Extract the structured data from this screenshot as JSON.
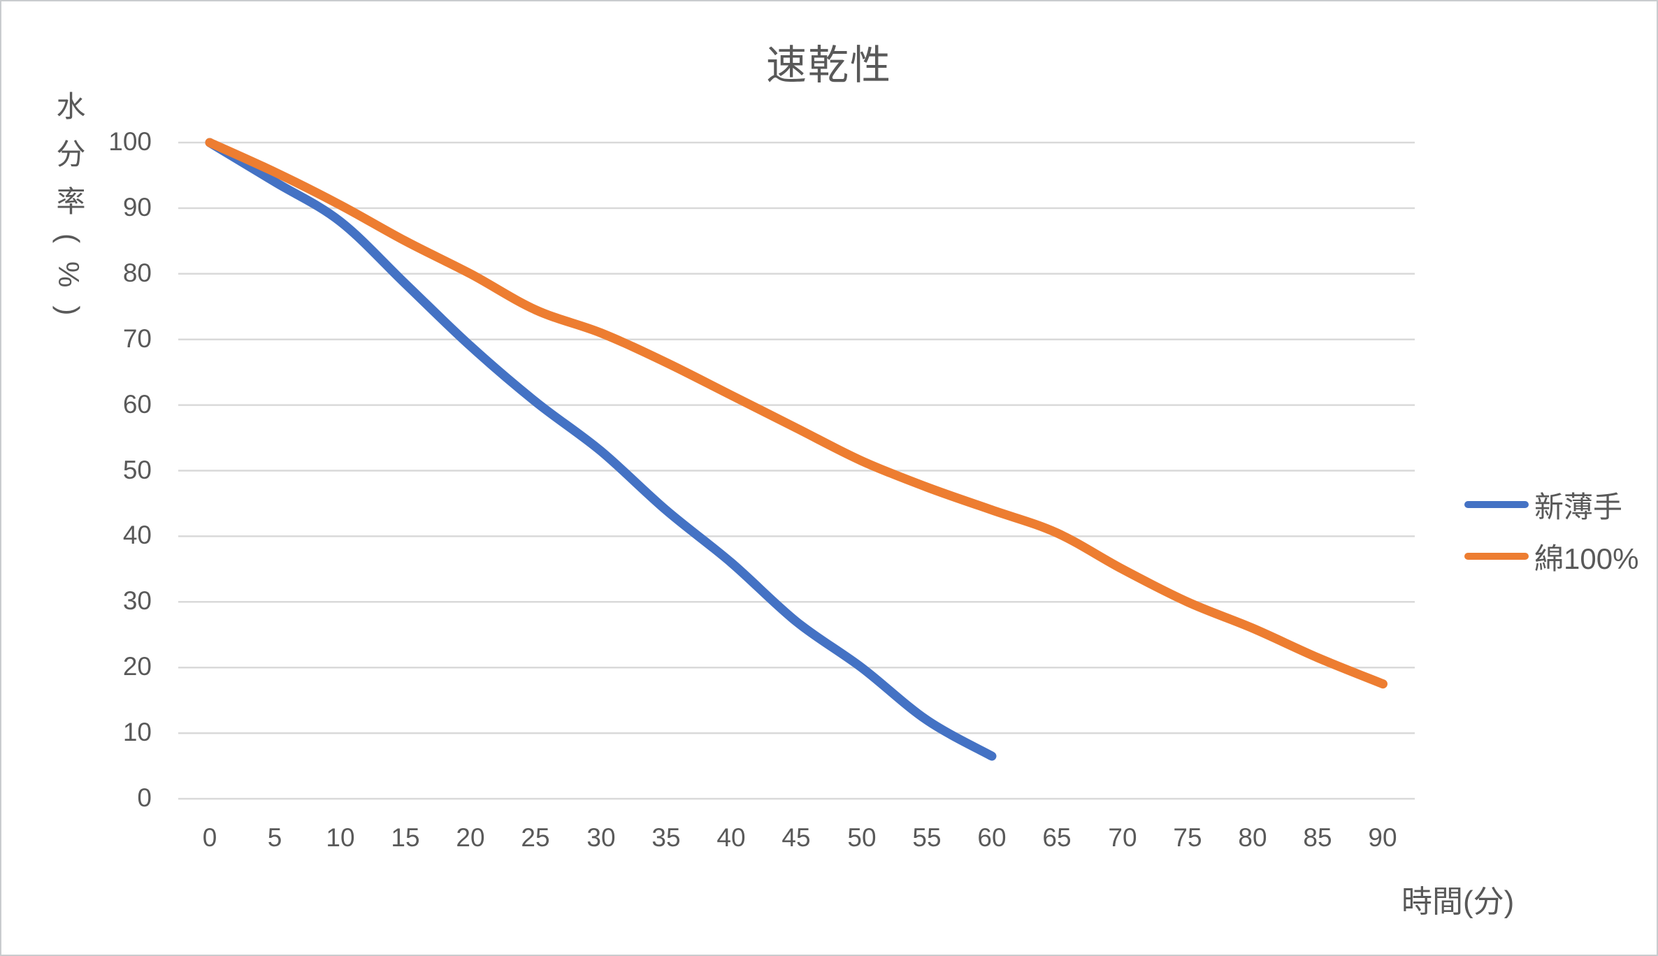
{
  "title": "速乾性",
  "y_axis": {
    "title": "水分率(%)"
  },
  "x_axis": {
    "title": "時間(分)"
  },
  "colors": {
    "series_blue": "#4472C4",
    "series_orange": "#ED7D31",
    "gridline": "#D9D9D9",
    "text": "#595959"
  },
  "legend": {
    "items": [
      {
        "label": "新薄手",
        "color": "#4472C4"
      },
      {
        "label": "綿100%",
        "color": "#ED7D31"
      }
    ]
  },
  "chart_data": {
    "type": "line",
    "title": "速乾性",
    "xlabel": "時間(分)",
    "ylabel": "水分率(%)",
    "xlim": [
      0,
      90
    ],
    "ylim": [
      0,
      100
    ],
    "x_ticks": [
      0,
      5,
      10,
      15,
      20,
      25,
      30,
      35,
      40,
      45,
      50,
      55,
      60,
      65,
      70,
      75,
      80,
      85,
      90
    ],
    "y_ticks": [
      100,
      90,
      80,
      70,
      60,
      50,
      40,
      30,
      20,
      10,
      0
    ],
    "grid": "horizontal",
    "legend_position": "right",
    "line_style": "smooth",
    "series": [
      {
        "name": "新薄手",
        "color": "#4472C4",
        "x": [
          0,
          5,
          10,
          15,
          20,
          25,
          30,
          35,
          40,
          45,
          50,
          55,
          60
        ],
        "y": [
          100,
          94,
          88,
          78.5,
          69,
          60.5,
          53,
          44,
          36,
          27,
          20,
          12,
          6.5
        ]
      },
      {
        "name": "綿100%",
        "color": "#ED7D31",
        "x": [
          0,
          5,
          10,
          15,
          20,
          25,
          30,
          35,
          40,
          45,
          50,
          55,
          60,
          65,
          70,
          75,
          80,
          85,
          90
        ],
        "y": [
          100,
          95.5,
          90.5,
          85,
          80,
          74.5,
          71,
          66.5,
          61.5,
          56.5,
          51.5,
          47.5,
          44,
          40.5,
          35,
          30,
          26,
          21.5,
          17.5
        ]
      }
    ]
  }
}
